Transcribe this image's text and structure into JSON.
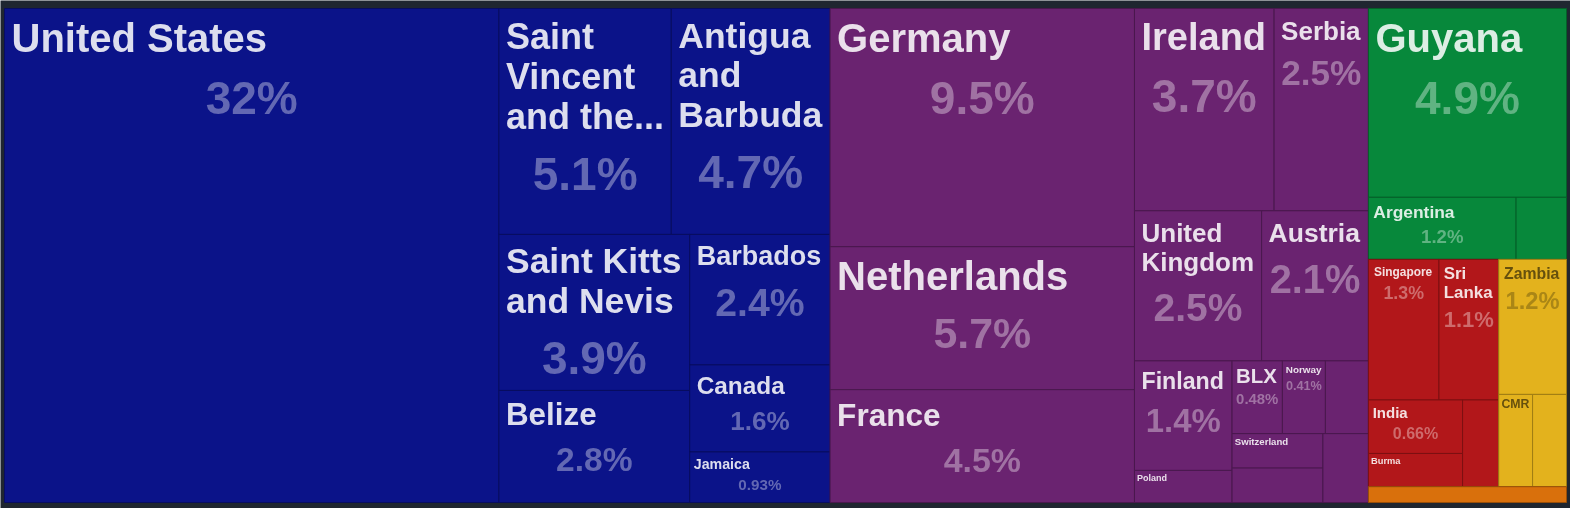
{
  "chart_data": {
    "type": "other",
    "categories": [
      "United States",
      "Saint Vincent and the...",
      "Antigua and Barbuda",
      "Saint Kitts and Nevis",
      "Belize",
      "Barbados",
      "Canada",
      "Jamaica",
      "Germany",
      "Netherlands",
      "France",
      "Ireland",
      "Serbia",
      "United Kingdom",
      "Austria",
      "Finland",
      "Poland",
      "BLX",
      "Norway",
      null,
      "Switzerland",
      null,
      null,
      "Guyana",
      "Argentina",
      null,
      "Singapore",
      "Sri Lanka",
      "India",
      "Burma",
      null,
      "Zambia",
      "CMR",
      null,
      null
    ],
    "values": [
      32,
      5.1,
      4.7,
      3.9,
      2.8,
      2.4,
      1.6,
      0.93,
      9.5,
      5.7,
      4.5,
      3.7,
      2.5,
      2.5,
      2.1,
      1.4,
      null,
      0.48,
      0.41,
      null,
      null,
      null,
      null,
      4.9,
      1.2,
      null,
      1.3,
      1.1,
      0.66,
      null,
      null,
      1.2,
      null,
      null,
      null
    ],
    "value_labels": [
      "32%",
      "5.1%",
      "4.7%",
      "3.9%",
      "2.8%",
      "2.4%",
      "1.6%",
      "0.93%",
      "9.5%",
      "5.7%",
      "4.5%",
      "3.7%",
      "2.5%",
      "2.5%",
      "2.1%",
      "1.4%",
      null,
      "0.48%",
      "0.41%",
      null,
      null,
      null,
      null,
      "4.9%",
      "1.2%",
      null,
      "1.3%",
      "1.1%",
      "0.66%",
      null,
      null,
      "1.2%",
      null,
      null,
      null
    ],
    "colors": [
      "#0b1389",
      "#0b1389",
      "#0b1389",
      "#0b1389",
      "#0b1389",
      "#0b1389",
      "#0b1389",
      "#0b1389",
      "#6a2370",
      "#6a2370",
      "#6a2370",
      "#6a2370",
      "#6a2370",
      "#6a2370",
      "#6a2370",
      "#6a2370",
      "#6a2370",
      "#6a2370",
      "#6a2370",
      "#6a2370",
      "#6a2370",
      "#6a2370",
      "#6a2370",
      "#07883b",
      "#07883b",
      "#07883b",
      "#b2171a",
      "#b2171a",
      "#b2171a",
      "#b2171a",
      "#b2171a",
      "#e3b21d",
      "#e3b21d",
      "#e3b21d",
      "#d9700c"
    ]
  }
}
